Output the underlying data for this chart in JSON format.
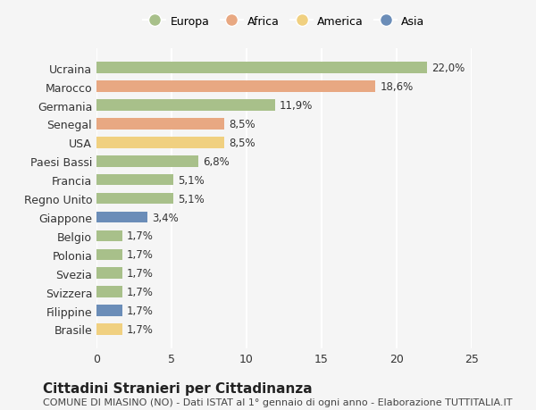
{
  "countries": [
    "Brasile",
    "Filippine",
    "Svizzera",
    "Svezia",
    "Polonia",
    "Belgio",
    "Giappone",
    "Regno Unito",
    "Francia",
    "Paesi Bassi",
    "USA",
    "Senegal",
    "Germania",
    "Marocco",
    "Ucraina"
  ],
  "values": [
    1.7,
    1.7,
    1.7,
    1.7,
    1.7,
    1.7,
    3.4,
    5.1,
    5.1,
    6.8,
    8.5,
    8.5,
    11.9,
    18.6,
    22.0
  ],
  "labels": [
    "1,7%",
    "1,7%",
    "1,7%",
    "1,7%",
    "1,7%",
    "1,7%",
    "3,4%",
    "5,1%",
    "5,1%",
    "6,8%",
    "8,5%",
    "8,5%",
    "11,9%",
    "18,6%",
    "22,0%"
  ],
  "continents": [
    "America",
    "Asia",
    "Europa",
    "Europa",
    "Europa",
    "Europa",
    "Asia",
    "Europa",
    "Europa",
    "Europa",
    "America",
    "Africa",
    "Europa",
    "Africa",
    "Europa"
  ],
  "continent_colors": {
    "Europa": "#a8c08a",
    "Africa": "#e8a882",
    "America": "#f0d080",
    "Asia": "#6b8db8"
  },
  "legend_order": [
    "Europa",
    "Africa",
    "America",
    "Asia"
  ],
  "legend_colors": [
    "#a8c08a",
    "#e8a882",
    "#f0d080",
    "#6b8db8"
  ],
  "title": "Cittadini Stranieri per Cittadinanza",
  "subtitle": "COMUNE DI MIASINO (NO) - Dati ISTAT al 1° gennaio di ogni anno - Elaborazione TUTTITALIA.IT",
  "xlim": [
    0,
    25
  ],
  "xticks": [
    0,
    5,
    10,
    15,
    20,
    25
  ],
  "background_color": "#f5f5f5",
  "grid_color": "#ffffff",
  "label_fontsize": 8.5,
  "title_fontsize": 11,
  "subtitle_fontsize": 8
}
